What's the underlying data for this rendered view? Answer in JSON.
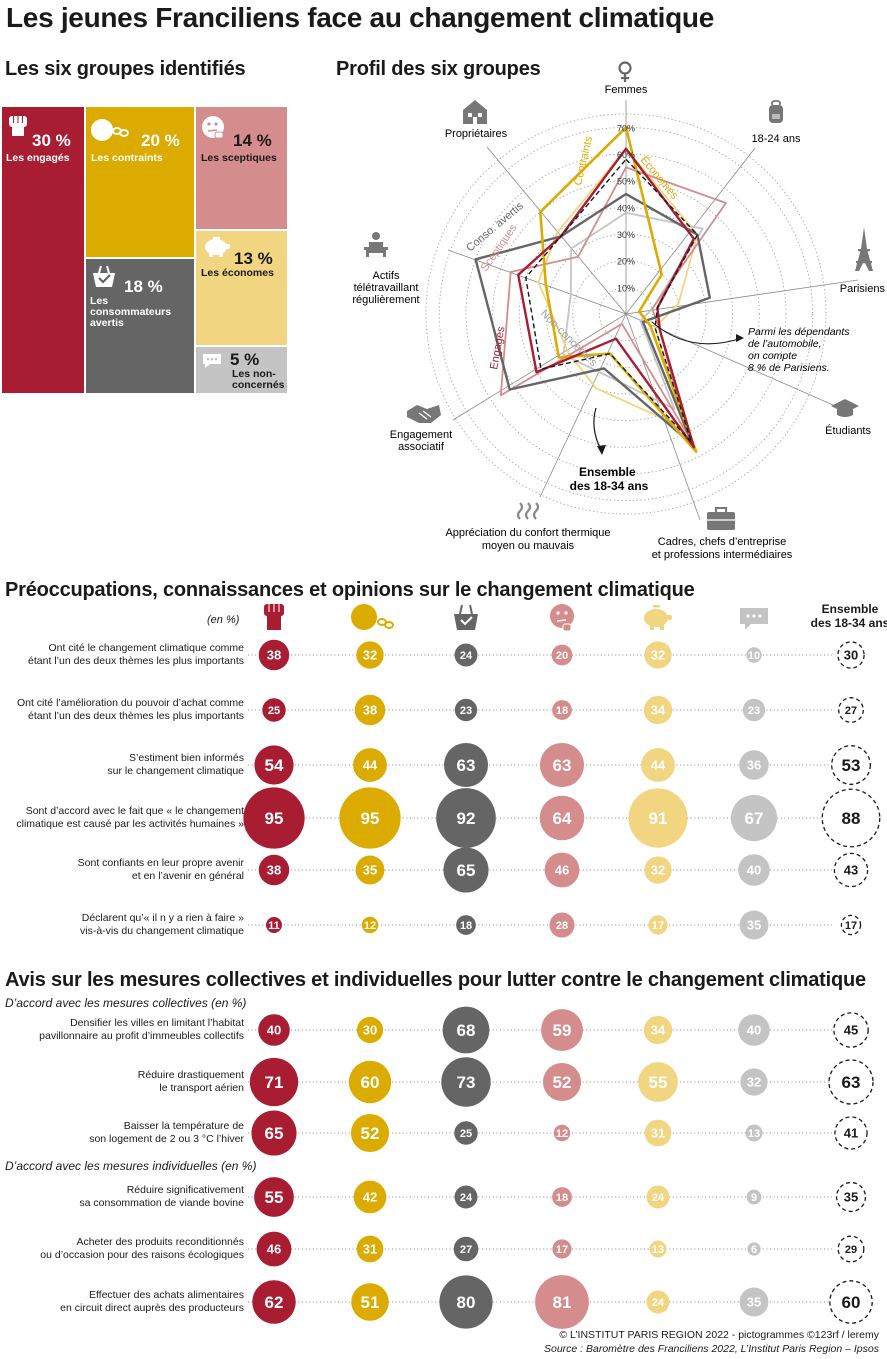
{
  "title": "Les jeunes Franciliens face au changement climatique",
  "section_groups": "Les six groupes identifiés",
  "section_profile": "Profil des six groupes",
  "section_opinions": "Préoccupations, connaissances et opinions sur le changement climatique",
  "section_measures": "Avis sur les mesures collectives et individuelles pour lutter contre le changement climatique",
  "unit": "(en %)",
  "ensemble_header": [
    "Ensemble",
    "des 18-34 ans"
  ],
  "subhead_collective": "D’accord avec les mesures collectives (en %)",
  "subhead_individual": "D’accord avec les mesures individuelles (en %)",
  "colors": {
    "engages": "#a91d33",
    "contraints": "#dcab00",
    "consommateurs": "#666565",
    "sceptiques": "#d48c8c",
    "economes": "#f1d581",
    "non_concernes": "#c4c4c4"
  },
  "groups": [
    {
      "pct": "30 %",
      "label": "Les engagés",
      "icon": "fist-icon"
    },
    {
      "pct": "20 %",
      "label": "Les contraints",
      "icon": "ball-and-chain-icon"
    },
    {
      "pct": "14 %",
      "label": "Les sceptiques",
      "icon": "thinking-face-icon"
    },
    {
      "pct": "18 %",
      "label": "Les consommateurs avertis",
      "icon": "shopping-basket-icon"
    },
    {
      "pct": "13 %",
      "label": "Les économes",
      "icon": "piggy-bank-icon"
    },
    {
      "pct": "5 %",
      "label": "Les non-concernés",
      "icon": "speech-bubble-icon"
    }
  ],
  "radar": {
    "axes": [
      "Femmes",
      "18-24 ans",
      "Parisiens",
      "Étudiants",
      "Cadres, chefs d’entreprise et professions intermédiaires",
      "Appréciation du confort thermique moyen ou mauvais",
      "Engagement associatif",
      "Actifs télétravaillant régulièrement",
      "Propriétaires"
    ],
    "axis_icons": [
      "female-symbol-icon",
      "backpack-icon",
      "eiffel-tower-icon",
      "graduation-cap-icon",
      "briefcase-icon",
      "heat-waves-icon",
      "handshake-icon",
      "remote-worker-icon",
      "house-icon"
    ],
    "ticks": [
      "10%",
      "20%",
      "30%",
      "40%",
      "50%",
      "60%",
      "70%"
    ],
    "series_labels": [
      "Contraints",
      "Économes",
      "Conso. avertis",
      "Sceptiques",
      "Engagés",
      "Non-concernés"
    ],
    "annotation_lines": [
      "Parmi les dépendants",
      "de l’automobile,",
      "on compte",
      "8 % de Parisiens."
    ],
    "ensemble_label": [
      "Ensemble",
      "des 18-34 ans"
    ]
  },
  "chart_data": [
    {
      "type": "radar",
      "title": "Profil des six groupes",
      "axes": [
        "Femmes",
        "18-24 ans",
        "Parisiens",
        "Étudiants",
        "Cadres, chefs d’entreprise et professions intermédiaires",
        "Appréciation du confort thermique moyen ou mauvais",
        "Engagement associatif",
        "Actifs télétravaillant régulièrement",
        "Propriétaires"
      ],
      "rmax": 75,
      "series": [
        {
          "name": "Engagés",
          "values": [
            62,
            38,
            12,
            14,
            56,
            10,
            40,
            43,
            38
          ]
        },
        {
          "name": "Contraints",
          "values": [
            70,
            20,
            5,
            10,
            58,
            16,
            30,
            32,
            50
          ]
        },
        {
          "name": "Conso. avertis",
          "values": [
            45,
            40,
            32,
            7,
            55,
            22,
            52,
            60,
            38
          ]
        },
        {
          "name": "Sceptiques",
          "values": [
            55,
            56,
            10,
            14,
            50,
            4,
            56,
            46,
            28
          ]
        },
        {
          "name": "Économes",
          "values": [
            62,
            40,
            20,
            12,
            48,
            30,
            26,
            35,
            40
          ]
        },
        {
          "name": "Non-concernés",
          "values": [
            38,
            43,
            10,
            6,
            40,
            24,
            28,
            22,
            32
          ]
        },
        {
          "name": "Ensemble des 18-34 ans",
          "values": [
            58,
            40,
            12,
            12,
            54,
            16,
            38,
            40,
            38
          ]
        }
      ]
    },
    {
      "type": "table",
      "title": "Préoccupations, connaissances et opinions sur le changement climatique",
      "columns": [
        "Engagés",
        "Contraints",
        "Consommateurs avertis",
        "Sceptiques",
        "Économes",
        "Non-concernés",
        "Ensemble des 18-34 ans"
      ],
      "rows": [
        {
          "label": [
            "Ont cité le changement climatique comme",
            "étant l’un des deux thèmes les plus importants"
          ],
          "values": [
            38,
            32,
            24,
            20,
            32,
            10,
            30
          ]
        },
        {
          "label": [
            "Ont cité l’amélioration du pouvoir d’achat comme",
            "étant l’un des deux thèmes les plus importants"
          ],
          "values": [
            25,
            38,
            23,
            18,
            34,
            23,
            27
          ]
        },
        {
          "label": [
            "S’estiment bien informés",
            "sur le changement climatique"
          ],
          "values": [
            54,
            44,
            63,
            63,
            44,
            36,
            53
          ]
        },
        {
          "label": [
            "Sont d’accord avec le fait que « le changement",
            "climatique est causé par les activités humaines »"
          ],
          "values": [
            95,
            95,
            92,
            64,
            91,
            67,
            88
          ]
        },
        {
          "label": [
            "Sont confiants en leur propre avenir",
            "et en l’avenir en général"
          ],
          "values": [
            38,
            35,
            65,
            46,
            32,
            40,
            43
          ]
        },
        {
          "label": [
            "Déclarent qu’« il n y a rien à faire »",
            "vis-à-vis du changement climatique"
          ],
          "values": [
            11,
            12,
            18,
            28,
            17,
            35,
            17
          ]
        }
      ]
    },
    {
      "type": "table",
      "title": "Avis sur les mesures collectives et individuelles pour lutter contre le changement climatique",
      "columns": [
        "Engagés",
        "Contraints",
        "Consommateurs avertis",
        "Sceptiques",
        "Économes",
        "Non-concernés",
        "Ensemble des 18-34 ans"
      ],
      "rows": [
        {
          "label": [
            "Densifier les villes en limitant l’habitat",
            "pavillonnaire au profit d’immeubles collectifs"
          ],
          "values": [
            40,
            30,
            68,
            59,
            34,
            40,
            45
          ]
        },
        {
          "label": [
            "Réduire drastiquement",
            "le transport aérien"
          ],
          "values": [
            71,
            60,
            73,
            52,
            55,
            32,
            63
          ]
        },
        {
          "label": [
            "Baisser la température de",
            "son logement de 2 ou 3 °C l’hiver"
          ],
          "values": [
            65,
            52,
            25,
            12,
            31,
            13,
            41
          ]
        },
        {
          "label": [
            "Réduire significativement",
            "sa consommation de viande bovine"
          ],
          "values": [
            55,
            42,
            24,
            18,
            24,
            9,
            35
          ]
        },
        {
          "label": [
            "Acheter des produits reconditionnés",
            "ou d’occasion pour des raisons écologiques"
          ],
          "values": [
            46,
            31,
            27,
            17,
            13,
            6,
            29
          ]
        },
        {
          "label": [
            "Effectuer des achats alimentaires",
            "en circuit direct auprès des producteurs"
          ],
          "values": [
            62,
            51,
            80,
            81,
            24,
            35,
            60
          ]
        }
      ]
    }
  ],
  "footer_credit": "© L’INSTITUT PARIS REGION 2022 - pictogrammes ©123rf / leremy",
  "footer_source": "Source : Baromètre des Franciliens 2022, L’Institut Paris Region – Ipsos"
}
